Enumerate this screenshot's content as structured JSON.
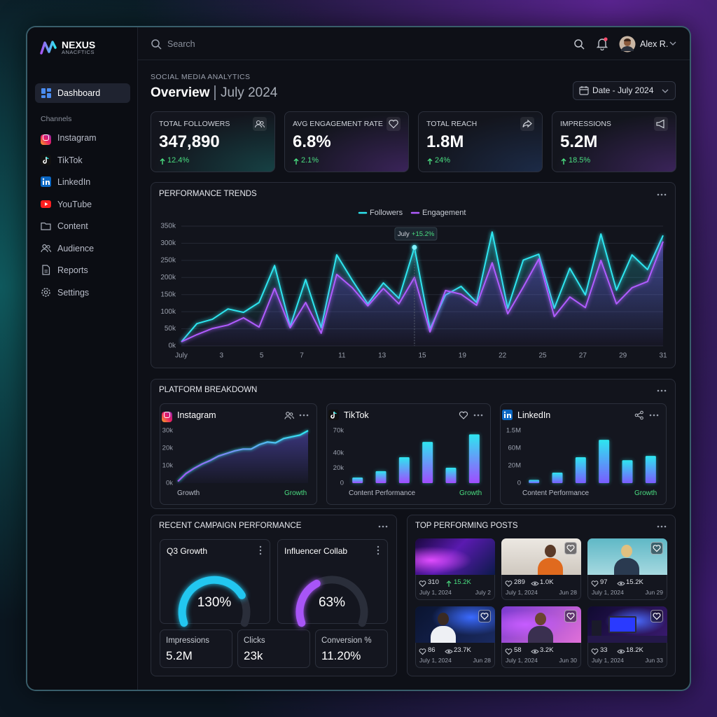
{
  "brand": {
    "name": "NEXUS",
    "tagline": "ANACFTICS"
  },
  "topbar": {
    "search": "Search",
    "user": "Alex R."
  },
  "sidebar": {
    "active": "Dashboard",
    "section": "Channels",
    "items": [
      "Instagram",
      "TikTok",
      "LinkedIn",
      "YouTube",
      "Content",
      "Audience",
      "Reports",
      "Settings"
    ]
  },
  "header": {
    "eyebrow": "SOCIAL MEDIA ANALYTICS",
    "title": "Overview",
    "period": "July 2024",
    "date_filter": "Date - July 2024"
  },
  "kpis": [
    {
      "label": "TOTAL FOLLOWERS",
      "value": "347,890",
      "change": "12.4%"
    },
    {
      "label": "AVG ENGAGEMENT RATE",
      "value": "6.8%",
      "change": "2.1%"
    },
    {
      "label": "TOTAL REACH",
      "value": "1.8M",
      "change": "24%"
    },
    {
      "label": "IMPRESSIONS",
      "value": "5.2M",
      "change": "18.5%"
    }
  ],
  "trends": {
    "type": "line",
    "title": "PERFORMANCE TRENDS",
    "xticks": [
      "July",
      3,
      5,
      7,
      11,
      13,
      15,
      19,
      22,
      25,
      27,
      29,
      31
    ],
    "ylim": [
      0,
      350000
    ],
    "yticks": [
      {
        "value": 0,
        "label": "0k"
      },
      {
        "value": 50000,
        "label": "50k"
      },
      {
        "value": 100000,
        "label": "100k"
      },
      {
        "value": 150000,
        "label": "150k"
      },
      {
        "value": 200000,
        "label": "200k"
      },
      {
        "value": 250000,
        "label": "250k"
      },
      {
        "value": 300000,
        "label": "300k"
      },
      {
        "value": 350000,
        "label": "350k"
      }
    ],
    "grid": true,
    "series": [
      {
        "name": "Followers",
        "color": "#2ee6f0",
        "values": [
          12000,
          65000,
          78000,
          108000,
          98000,
          127000,
          235000,
          57000,
          194000,
          53000,
          266000,
          192000,
          123000,
          184000,
          139000,
          288000,
          49000,
          149000,
          174000,
          127000,
          333000,
          110000,
          251000,
          268000,
          110000,
          227000,
          149000,
          327000,
          163000,
          266000,
          223000,
          323000
        ]
      },
      {
        "name": "Engagement",
        "color": "#b05cff",
        "values": [
          12000,
          33000,
          51000,
          61000,
          82000,
          55000,
          168000,
          53000,
          127000,
          37000,
          209000,
          170000,
          117000,
          168000,
          123000,
          200000,
          41000,
          162000,
          151000,
          119000,
          243000,
          94000,
          172000,
          254000,
          86000,
          143000,
          112000,
          250000,
          123000,
          170000,
          188000,
          305000
        ]
      }
    ],
    "annotation": {
      "label": "July",
      "change": "+15.2%"
    }
  },
  "platforms": {
    "title": "PLATFORM BREAKDOWN",
    "charts": [
      {
        "type": "area",
        "name": "Instagram",
        "colors": [
          "#a855f7",
          "#2ee6f0"
        ],
        "ylim": [
          0,
          30000
        ],
        "yticks": [
          {
            "value": 0,
            "label": "0k"
          },
          {
            "value": 10000,
            "label": "10k"
          },
          {
            "value": 20000,
            "label": "20k"
          },
          {
            "value": 30000,
            "label": "30k"
          }
        ],
        "values": [
          1000,
          5500,
          8500,
          11000,
          13000,
          15500,
          17000,
          18500,
          19500,
          19500,
          22000,
          23500,
          23000,
          25500,
          26500,
          27500,
          30000
        ],
        "caption": "Growth",
        "trend": "Growth"
      },
      {
        "type": "bar",
        "name": "TikTok",
        "colors": [
          "#2ee6f0",
          "#a04cff"
        ],
        "ylim": [
          0,
          70000
        ],
        "yticks": [
          0,
          {
            "value": 20000,
            "label": "20k"
          },
          {
            "value": 40000,
            "label": "40k"
          },
          {
            "value": 70000,
            "label": "70k"
          }
        ],
        "values": [
          7500,
          16000,
          34500,
          55000,
          20500,
          65000
        ],
        "caption": "Content Performance",
        "trend": "Growth"
      },
      {
        "type": "bar",
        "name": "LinkedIn",
        "colors": [
          "#2ee6f0",
          "#7a5cff"
        ],
        "ylim": [
          0,
          80000000
        ],
        "yticks": [
          0,
          "20M",
          "60M",
          "1.5M"
        ],
        "values": [
          5000000,
          16000000,
          39500000,
          66000000,
          35000000,
          41500000
        ],
        "caption": "Content Performance",
        "trend": "Growth"
      }
    ]
  },
  "campaigns": {
    "title": "RECENT CAMPAIGN PERFORMANCE",
    "gauges": [
      {
        "name": "Q3 Growth",
        "value": 130,
        "value_label": "130%",
        "color": "#22c7f0"
      },
      {
        "name": "Influencer Collab",
        "value": 63,
        "value_label": "63%",
        "color": "#a855f7"
      }
    ],
    "stats": [
      {
        "label": "Impressions",
        "value": "5.2M"
      },
      {
        "label": "Clicks",
        "value": "23k"
      },
      {
        "label": "Conversion %",
        "value": "11.20%"
      }
    ]
  },
  "posts": {
    "title": "TOP PERFORMING POSTS",
    "items": [
      {
        "likes": 310,
        "views": "15.2K",
        "date": "July 1, 2024",
        "posted": "July 2"
      },
      {
        "likes": 289,
        "views": "1.0K",
        "date": "July 1, 2024",
        "posted": "Jun 28"
      },
      {
        "likes": 97,
        "views": "15.2K",
        "date": "July 1, 2024",
        "posted": "Jun 29"
      },
      {
        "likes": 86,
        "views": "23.7K",
        "date": "July 1, 2024",
        "posted": "Jun 28"
      },
      {
        "likes": 58,
        "views": "3.2K",
        "date": "July 1, 2024",
        "posted": "Jun 30"
      },
      {
        "likes": 33,
        "views": "18.2K",
        "date": "July 1, 2024",
        "posted": "Jun 33"
      }
    ]
  }
}
